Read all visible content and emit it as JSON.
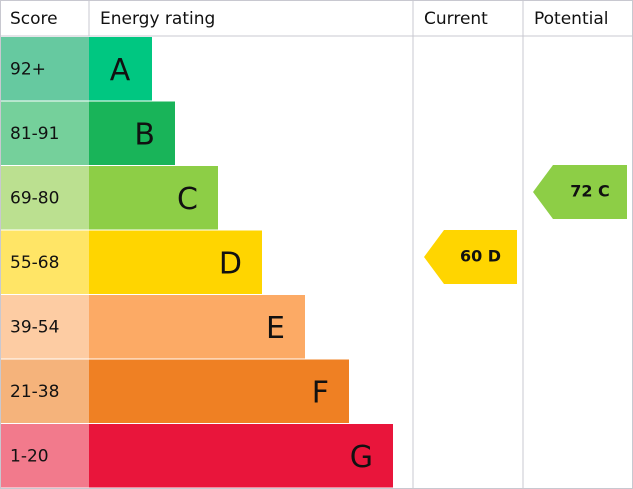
{
  "header": {
    "score": "Score",
    "rating": "Energy rating",
    "current": "Current",
    "potential": "Potential"
  },
  "rows": [
    {
      "score": "92+",
      "letter": "A",
      "color": "#00c781",
      "score_color": "#66c9a0"
    },
    {
      "score": "81-91",
      "letter": "B",
      "color": "#19b459",
      "score_color": "#75d09b"
    },
    {
      "score": "69-80",
      "letter": "C",
      "color": "#8dce46",
      "score_color": "#bbe090"
    },
    {
      "score": "55-68",
      "letter": "D",
      "color": "#ffd500",
      "score_color": "#ffe566"
    },
    {
      "score": "39-54",
      "letter": "E",
      "color": "#fcaa65",
      "score_color": "#fdcca3"
    },
    {
      "score": "21-38",
      "letter": "F",
      "color": "#ef8023",
      "score_color": "#f5b37b"
    },
    {
      "score": "1-20",
      "letter": "G",
      "color": "#e9153b",
      "score_color": "#f27a8c"
    }
  ],
  "current": {
    "label": "60 D",
    "color": "#ffd500"
  },
  "potential": {
    "label": "72 C",
    "color": "#8dce46"
  }
}
